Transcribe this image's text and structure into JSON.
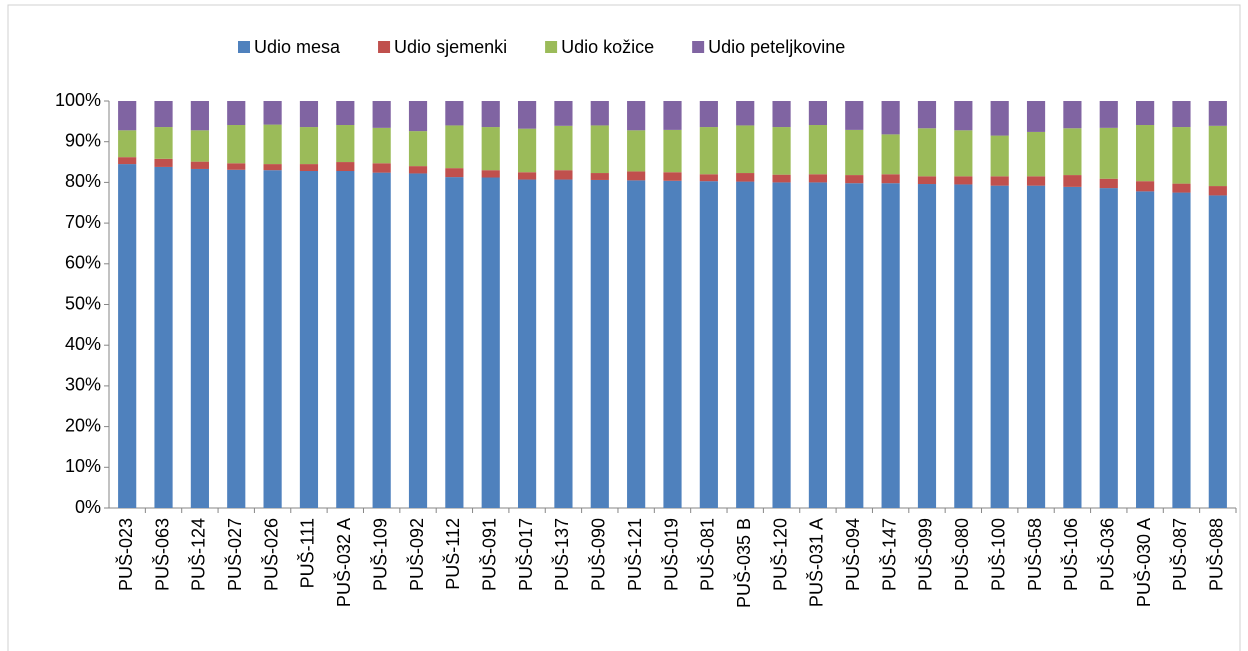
{
  "chart_data": {
    "type": "stacked_bar",
    "categories": [
      "PUŠ-023",
      "PUŠ-063",
      "PUŠ-124",
      "PUŠ-027",
      "PUŠ-026",
      "PUŠ-111",
      "PUŠ-032 A",
      "PUŠ-109",
      "PUŠ-092",
      "PUŠ-112",
      "PUŠ-091",
      "PUŠ-017",
      "PUŠ-137",
      "PUŠ-090",
      "PUŠ-121",
      "PUŠ-019",
      "PUŠ-081",
      "PUŠ-035 B",
      "PUŠ-120",
      "PUŠ-031 A",
      "PUŠ-094",
      "PUŠ-147",
      "PUŠ-099",
      "PUŠ-080",
      "PUŠ-100",
      "PUŠ-058",
      "PUŠ-106",
      "PUŠ-036",
      "PUŠ-030 A",
      "PUŠ-087",
      "PUŠ-088"
    ],
    "series": [
      {
        "name": "Udio mesa",
        "color": "#4f81bd",
        "values": [
          84.5,
          83.8,
          83.3,
          83.1,
          83.0,
          82.8,
          82.8,
          82.4,
          82.2,
          81.3,
          81.2,
          80.7,
          80.7,
          80.6,
          80.5,
          80.4,
          80.3,
          80.2,
          80.0,
          80.0,
          79.8,
          79.8,
          79.6,
          79.5,
          79.2,
          79.2,
          78.9,
          78.6,
          77.8,
          77.5,
          76.8
        ]
      },
      {
        "name": "Udio sjemenki",
        "color": "#c0504d",
        "values": [
          1.7,
          2.0,
          1.8,
          1.6,
          1.5,
          1.7,
          2.2,
          2.3,
          1.8,
          2.2,
          1.8,
          1.8,
          2.3,
          1.7,
          2.2,
          2.1,
          1.7,
          2.1,
          1.9,
          2.0,
          2.0,
          2.2,
          1.9,
          2.0,
          2.3,
          2.3,
          2.9,
          2.3,
          2.5,
          2.2,
          2.3
        ]
      },
      {
        "name": "Udio kožice",
        "color": "#9bbb59",
        "values": [
          6.6,
          7.8,
          7.7,
          9.4,
          9.7,
          9.1,
          9.1,
          8.7,
          8.6,
          10.5,
          10.6,
          10.7,
          10.9,
          11.7,
          10.1,
          10.4,
          11.6,
          11.7,
          11.7,
          12.1,
          11.1,
          9.8,
          11.8,
          11.3,
          10.0,
          10.9,
          11.5,
          12.5,
          13.8,
          13.9,
          14.8
        ]
      },
      {
        "name": "Udio peteljkovine",
        "color": "#8064a2",
        "values": [
          7.2,
          6.4,
          7.2,
          5.9,
          5.8,
          6.4,
          5.9,
          6.6,
          7.4,
          6.0,
          6.4,
          6.8,
          6.1,
          6.0,
          7.2,
          7.1,
          6.4,
          6.0,
          6.4,
          5.9,
          7.1,
          8.2,
          6.7,
          7.2,
          8.5,
          7.6,
          6.7,
          6.6,
          5.9,
          6.4,
          6.1
        ]
      }
    ],
    "ylim": [
      0,
      100
    ],
    "yticks": [
      {
        "value": 0,
        "label": "0%"
      },
      {
        "value": 10,
        "label": "10%"
      },
      {
        "value": 20,
        "label": "20%"
      },
      {
        "value": 30,
        "label": "30%"
      },
      {
        "value": 40,
        "label": "40%"
      },
      {
        "value": 50,
        "label": "50%"
      },
      {
        "value": 60,
        "label": "60%"
      },
      {
        "value": 70,
        "label": "70%"
      },
      {
        "value": 80,
        "label": "80%"
      },
      {
        "value": 90,
        "label": "90%"
      },
      {
        "value": 100,
        "label": "100%"
      }
    ],
    "legend": "top"
  }
}
